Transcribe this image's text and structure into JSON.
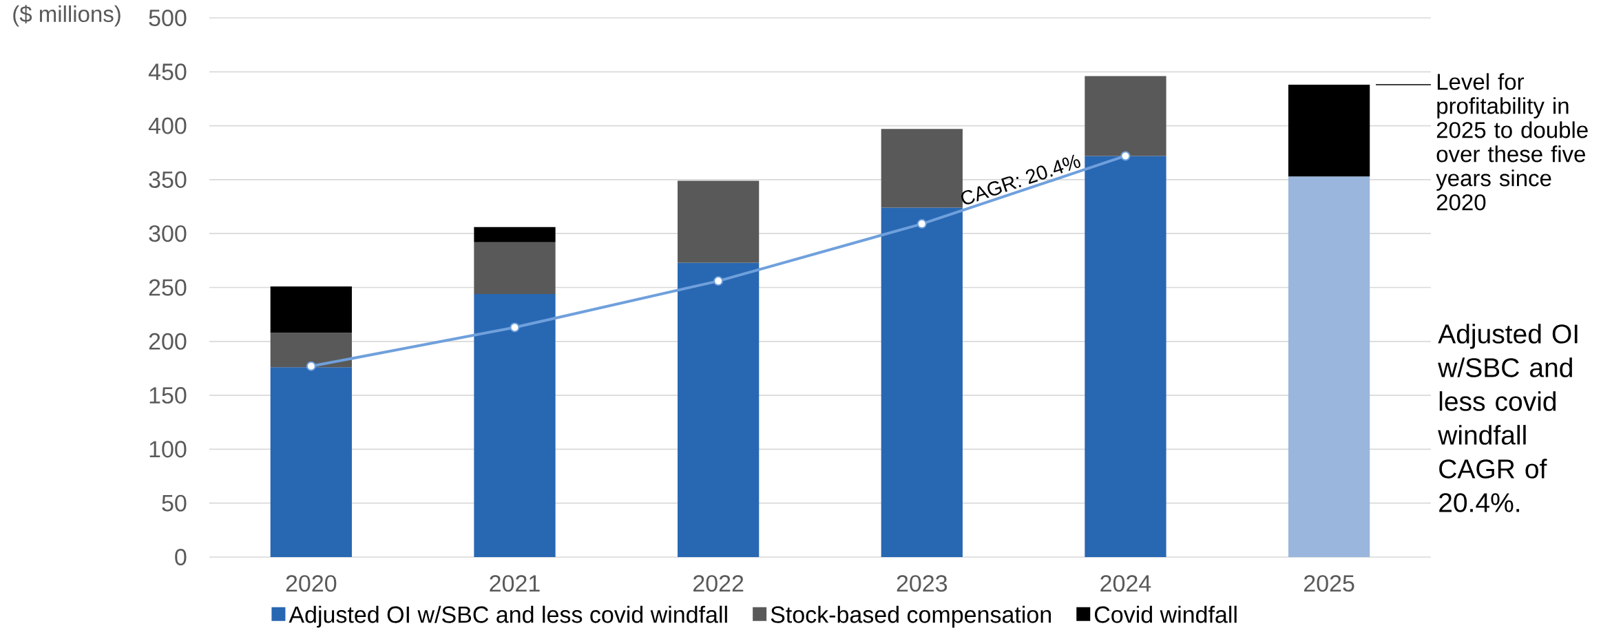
{
  "chart_data": {
    "type": "bar",
    "stacked": true,
    "ylabel": "($ millions)",
    "categories": [
      "2020",
      "2021",
      "2022",
      "2023",
      "2024",
      "2025"
    ],
    "series": [
      {
        "name": "Adjusted OI w/SBC and less covid windfall",
        "color": "#2867b2",
        "values": [
          176,
          244,
          273,
          324,
          372,
          null
        ]
      },
      {
        "color": "#9ab6dc",
        "values": [
          null,
          null,
          null,
          null,
          null,
          353
        ]
      },
      {
        "name": "Stock-based compensation",
        "color": "#595959",
        "values": [
          32,
          48,
          76,
          73,
          74,
          null
        ]
      },
      {
        "name": "Covid windfall",
        "color": "#000000",
        "values": [
          43,
          14,
          null,
          null,
          null,
          85
        ]
      },
      {
        "type": "line",
        "name": "CAGR: 20.4%",
        "color": "#6fa0dc",
        "marker": "circle",
        "values": [
          177,
          213,
          256,
          309,
          372,
          null
        ]
      }
    ],
    "ylim": [
      0,
      500
    ],
    "yticks": [
      0,
      50,
      100,
      150,
      200,
      250,
      300,
      350,
      400,
      450,
      500
    ],
    "grid": "y",
    "legend": "bottom",
    "ref_lines": [
      {
        "axis": "y",
        "value": 438,
        "label": "Level for profitability in 2025 to double over these five years since 2020",
        "color": "#000000"
      }
    ],
    "annotations": [
      "Adjusted OI w/SBC and less covid windfall CAGR of 20.4%."
    ]
  }
}
